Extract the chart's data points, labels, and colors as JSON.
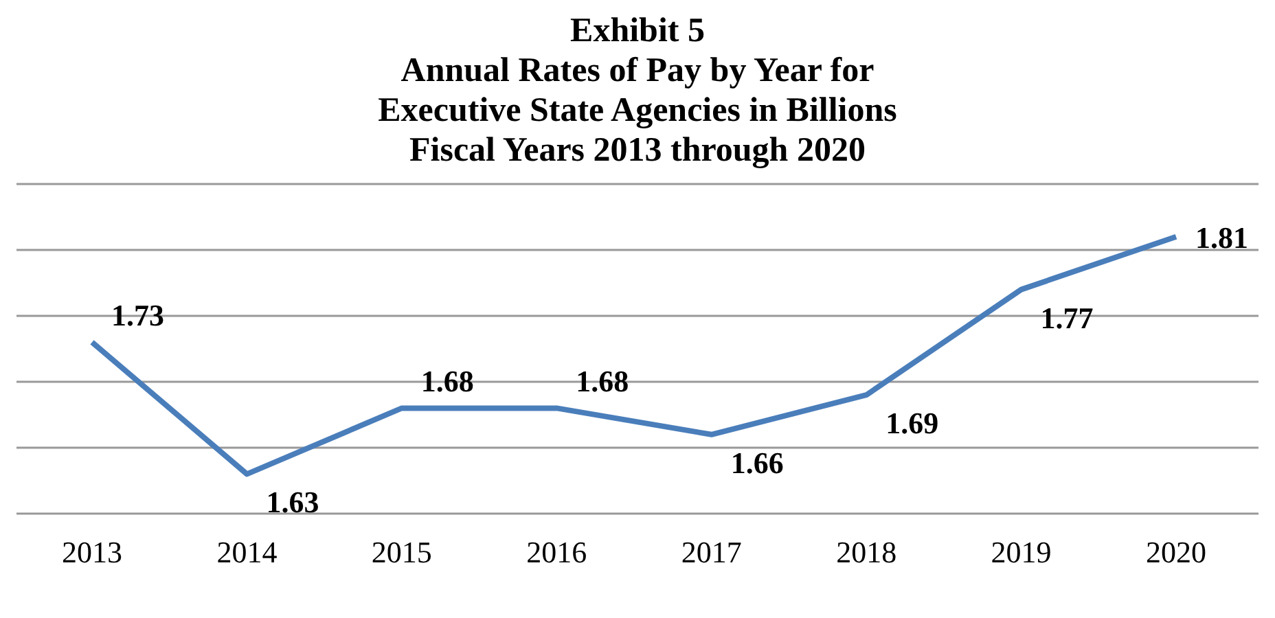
{
  "chart_data": {
    "type": "line",
    "title": "Exhibit 5\nAnnual Rates of Pay by Year for\nExecutive State Agencies in Billions\nFiscal Years 2013 through 2020",
    "categories": [
      "2013",
      "2014",
      "2015",
      "2016",
      "2017",
      "2018",
      "2019",
      "2020"
    ],
    "series": [
      {
        "color": "#4a7ebb",
        "values": [
          1.73,
          1.63,
          1.68,
          1.68,
          1.66,
          1.69,
          1.77,
          1.81
        ]
      }
    ],
    "ylim": [
      1.6,
      1.85
    ],
    "yticks": [
      {
        "value": 1.6,
        "label": null
      },
      {
        "value": 1.65,
        "label": null
      },
      {
        "value": 1.7,
        "label": null
      },
      {
        "value": 1.75,
        "label": null
      },
      {
        "value": 1.8,
        "label": null
      },
      {
        "value": 1.85,
        "label": null
      }
    ],
    "tick_labels": "x",
    "grid": "y",
    "data_labels": true,
    "marker": "none",
    "line_style": "solid",
    "legend": false
  }
}
